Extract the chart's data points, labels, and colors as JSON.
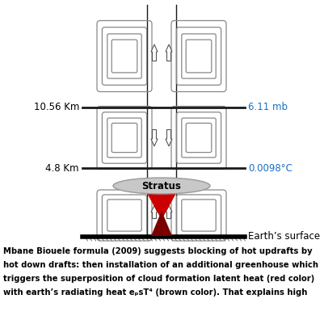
{
  "bg_color": "#ffffff",
  "label_10_56": "10.56 Km",
  "label_4_8": "4.8 Km",
  "label_6_11": "6.11 mb",
  "label_0098": "0.0098°C",
  "label_stratus": "Stratus",
  "label_earth": "Earth’s surface",
  "diagram_color": "#888888",
  "line_color": "#1a1a1a",
  "red_color": "#cc0000",
  "dark_red_color": "#7a0000",
  "blue_color": "#1a6fc4",
  "stratus_color": "#c8c8c8",
  "stratus_edge": "#999999",
  "arrow_color": "#555555",
  "cell_loops": 4,
  "figsize": [
    4.01,
    4.01
  ],
  "dpi": 100,
  "caption_lines": [
    "Mbane Biouele formula (2009) suggests blocking of hot updrafts by",
    "hot down drafts: then installation of an additional greenhouse which",
    "triggers the superposition of cloud formation latent heat (red color)",
    "with earth’s radiating heat eₚsT⁴ (brown color). That explains high"
  ]
}
